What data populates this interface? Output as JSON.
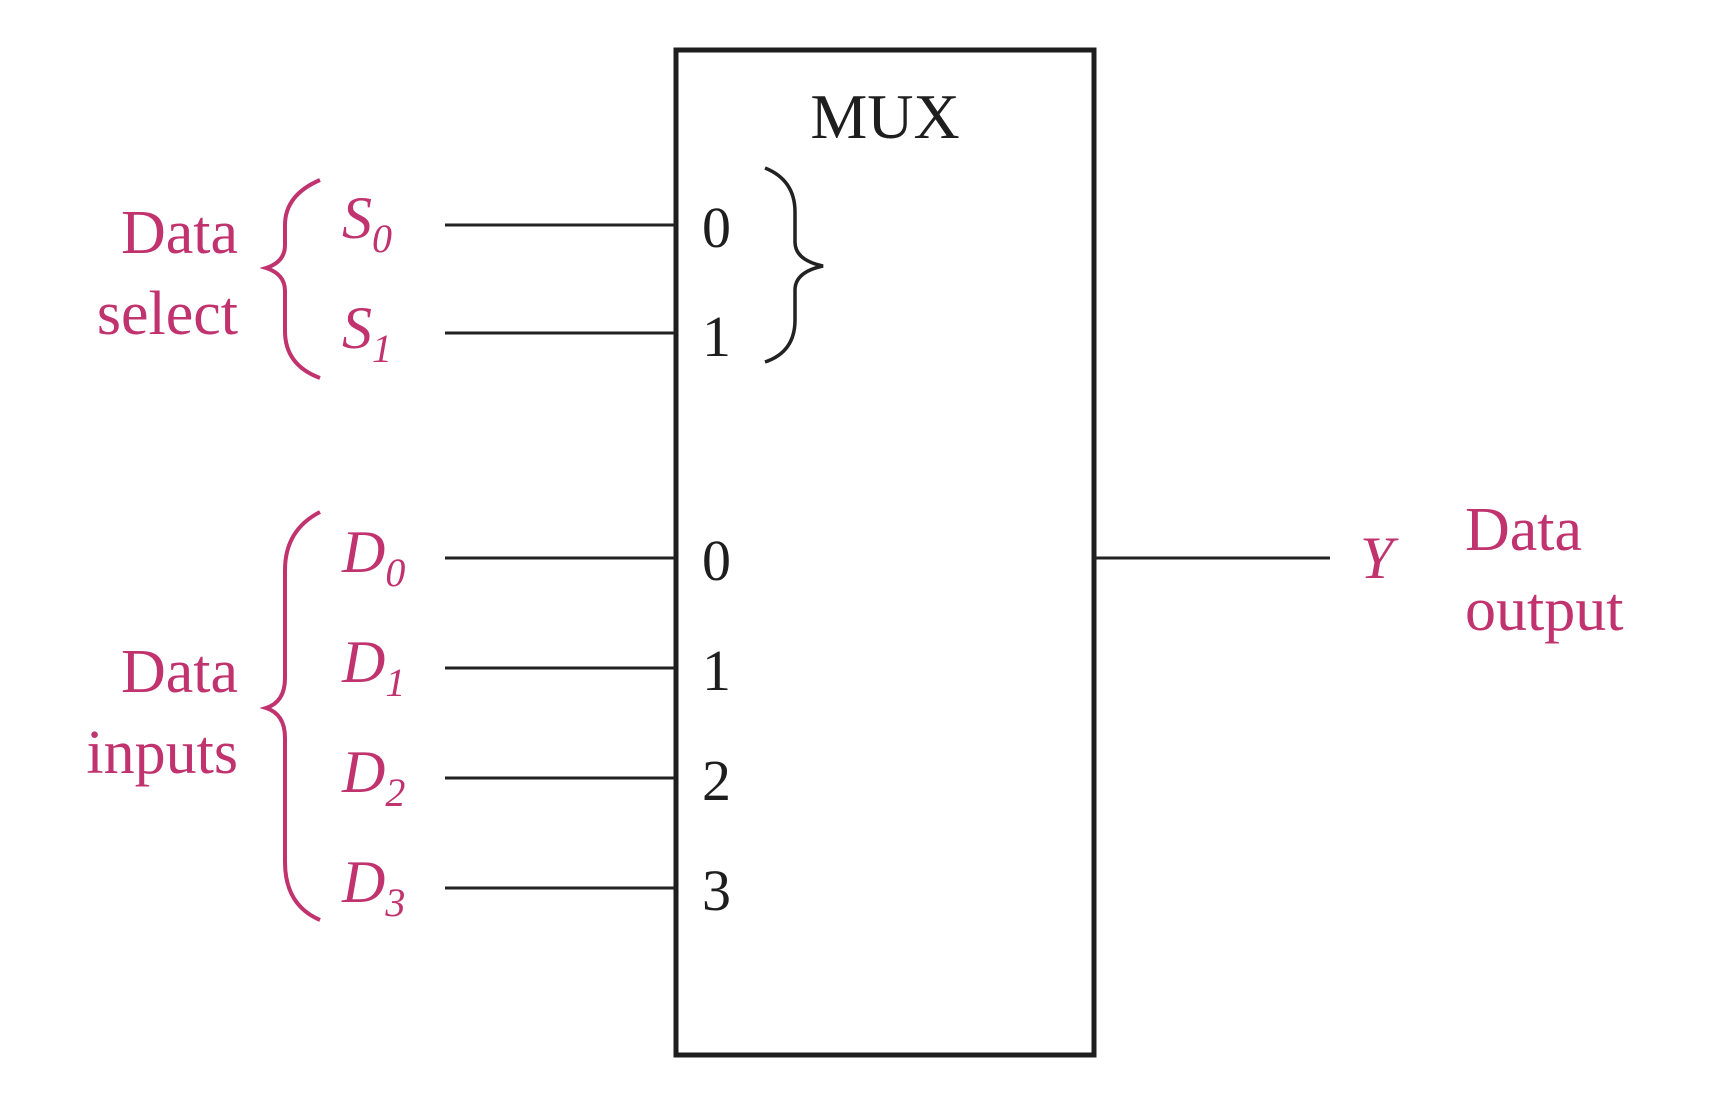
{
  "diagram": {
    "box_label": "MUX",
    "select_group": {
      "label_line1": "Data",
      "label_line2": "select",
      "signals": [
        {
          "base": "S",
          "sub": "0",
          "pin": "0"
        },
        {
          "base": "S",
          "sub": "1",
          "pin": "1"
        }
      ]
    },
    "data_group": {
      "label_line1": "Data",
      "label_line2": "inputs",
      "signals": [
        {
          "base": "D",
          "sub": "0",
          "pin": "0"
        },
        {
          "base": "D",
          "sub": "1",
          "pin": "1"
        },
        {
          "base": "D",
          "sub": "2",
          "pin": "2"
        },
        {
          "base": "D",
          "sub": "3",
          "pin": "3"
        }
      ]
    },
    "output": {
      "signal": "Y",
      "label_line1": "Data",
      "label_line2": "output"
    },
    "colors": {
      "label_color": "#c0336f",
      "line_color": "#222222"
    }
  }
}
